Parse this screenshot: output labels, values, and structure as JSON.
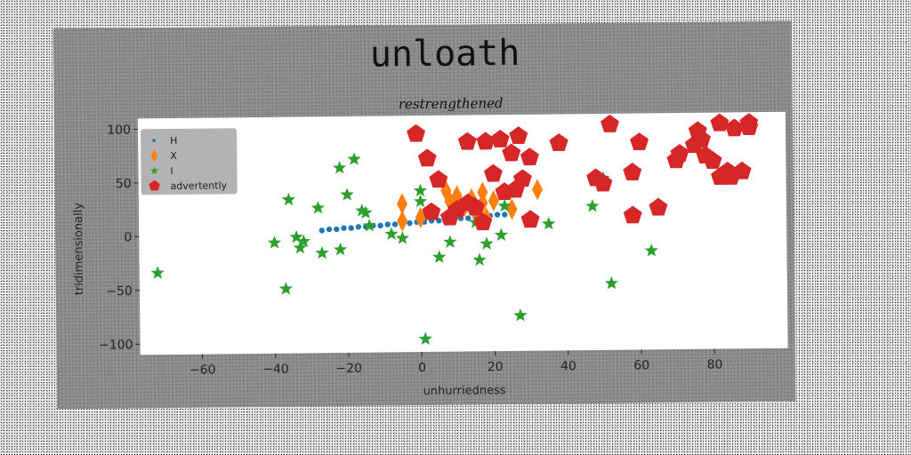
{
  "chart_data": {
    "type": "scatter",
    "title": "unloath",
    "subtitle": "restrengthened",
    "xlabel": "unhurriedness",
    "ylabel": "tridimensionally",
    "xlim": [
      -77,
      100
    ],
    "ylim": [
      -110,
      110
    ],
    "xticks": [
      -60,
      -40,
      -20,
      0,
      20,
      40,
      60,
      80
    ],
    "yticks": [
      -100,
      -50,
      0,
      50,
      100
    ],
    "grid": false,
    "legend_position": "top-left",
    "series": [
      {
        "name": "H",
        "marker": "circle",
        "color": "#1f77b4",
        "x": [
          -27,
          -25,
          -23,
          -21,
          -19,
          -17,
          -15,
          -13,
          -11,
          -9,
          -7,
          -5,
          -3,
          -1,
          1,
          3,
          5,
          7,
          9,
          11,
          13,
          15,
          17,
          19,
          21,
          23,
          25
        ],
        "y": [
          4,
          5,
          5,
          6,
          6,
          7,
          7,
          8,
          8,
          9,
          9,
          10,
          10,
          11,
          11,
          12,
          12,
          13,
          13,
          14,
          14,
          15,
          15,
          16,
          17,
          17,
          18
        ]
      },
      {
        "name": "X",
        "marker": "diamond",
        "color": "#ff7f0e",
        "x": [
          -5,
          -5,
          0,
          7,
          8,
          10,
          12,
          14,
          15,
          17,
          17,
          18,
          20,
          25,
          32
        ],
        "y": [
          28,
          12,
          15,
          40,
          30,
          35,
          25,
          32,
          20,
          28,
          38,
          14,
          30,
          22,
          40
        ]
      },
      {
        "name": "I",
        "marker": "star",
        "color": "#2ca02c",
        "x": [
          -72,
          -40,
          -37,
          -36,
          -34,
          -33,
          -32,
          -28,
          -27,
          -22,
          -22,
          -20,
          -18,
          -16,
          -15,
          -14,
          -8,
          -5,
          0,
          1,
          0,
          5,
          7,
          8,
          15,
          16,
          18,
          22,
          23,
          27,
          35,
          47,
          50,
          52,
          63
        ],
        "y": [
          -34,
          -7,
          -50,
          33,
          -2,
          -12,
          -6,
          25,
          -17,
          62,
          -14,
          37,
          70,
          22,
          20,
          8,
          0,
          -4,
          40,
          -98,
          30,
          -22,
          15,
          -8,
          10,
          -25,
          -10,
          -2,
          25,
          -77,
          8,
          24,
          50,
          -48,
          -18
        ]
      },
      {
        "name": "advertently",
        "marker": "pentagon",
        "color": "#d62728",
        "x": [
          -1,
          2,
          5,
          3,
          8,
          10,
          13,
          15,
          13,
          17,
          18,
          20,
          22,
          23,
          25,
          26,
          27,
          30,
          28,
          30,
          38,
          48,
          50,
          52,
          58,
          58,
          60,
          65,
          70,
          71,
          75,
          76,
          77,
          78,
          80,
          82,
          84,
          82,
          85,
          86,
          88,
          90,
          90
        ],
        "y": [
          93,
          70,
          50,
          20,
          15,
          22,
          28,
          24,
          85,
          10,
          85,
          55,
          87,
          38,
          74,
          40,
          90,
          12,
          50,
          70,
          83,
          50,
          45,
          100,
          55,
          15,
          83,
          22,
          66,
          72,
          80,
          93,
          85,
          70,
          65,
          50,
          55,
          100,
          50,
          95,
          55,
          96,
          100
        ]
      }
    ]
  }
}
